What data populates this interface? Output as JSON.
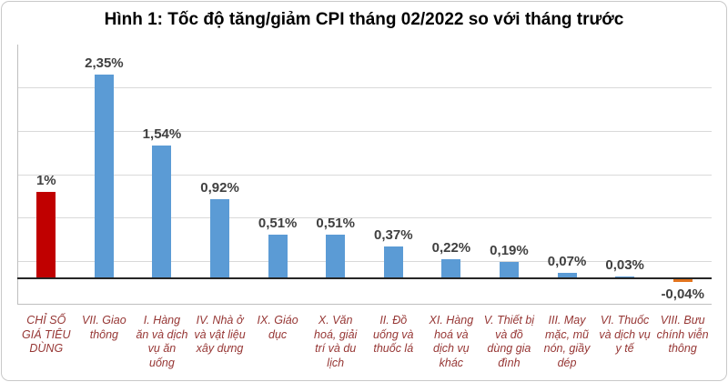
{
  "title": "Hình 1: Tốc độ tăng/giảm CPI tháng 02/2022 so với tháng trước",
  "chart_data": {
    "type": "bar",
    "title": "Hình 1: Tốc độ tăng/giảm CPI tháng 02/2022 so với tháng trước",
    "categories": [
      "CHỈ SỐ GIÁ TIÊU DÙNG",
      "VII. Giao thông",
      "I. Hàng ăn và dịch vụ ăn uống",
      "IV. Nhà ở và vật liệu xây dựng",
      "IX. Giáo dục",
      "X. Văn hoá, giải trí và du lịch",
      "II. Đồ uống và thuốc lá",
      "XI. Hàng hoá và dịch vụ khác",
      "V. Thiết bị và đồ dùng gia đình",
      "III. May mặc, mũ nón, giầy dép",
      "VI. Thuốc và dịch vụ y tế",
      "VIII. Bưu chính viễn thông"
    ],
    "values": [
      1.0,
      2.35,
      1.54,
      0.92,
      0.51,
      0.51,
      0.37,
      0.22,
      0.19,
      0.07,
      0.03,
      -0.04
    ],
    "value_labels": [
      "1%",
      "2,35%",
      "1,54%",
      "0,92%",
      "0,51%",
      "0,51%",
      "0,37%",
      "0,22%",
      "0,19%",
      "0,07%",
      "0,03%",
      "-0,04%"
    ],
    "xlabel": "",
    "ylabel": "",
    "ylim": [
      -0.3,
      2.7
    ],
    "gridline_step": 0.5,
    "grid": true,
    "legend": "none",
    "y_tick_labels_visible": false
  },
  "colors": {
    "cpi_index_bar": "#C00000",
    "group_bar": "#5B9BD5",
    "negative_bar": "#E2751F",
    "gridline": "#D9D9D9",
    "zero_line": "#262626",
    "axis_line": "#BFBFBF",
    "value_label": "#404040",
    "category_label": "#963634",
    "frame_border": "#C9C9C9"
  }
}
